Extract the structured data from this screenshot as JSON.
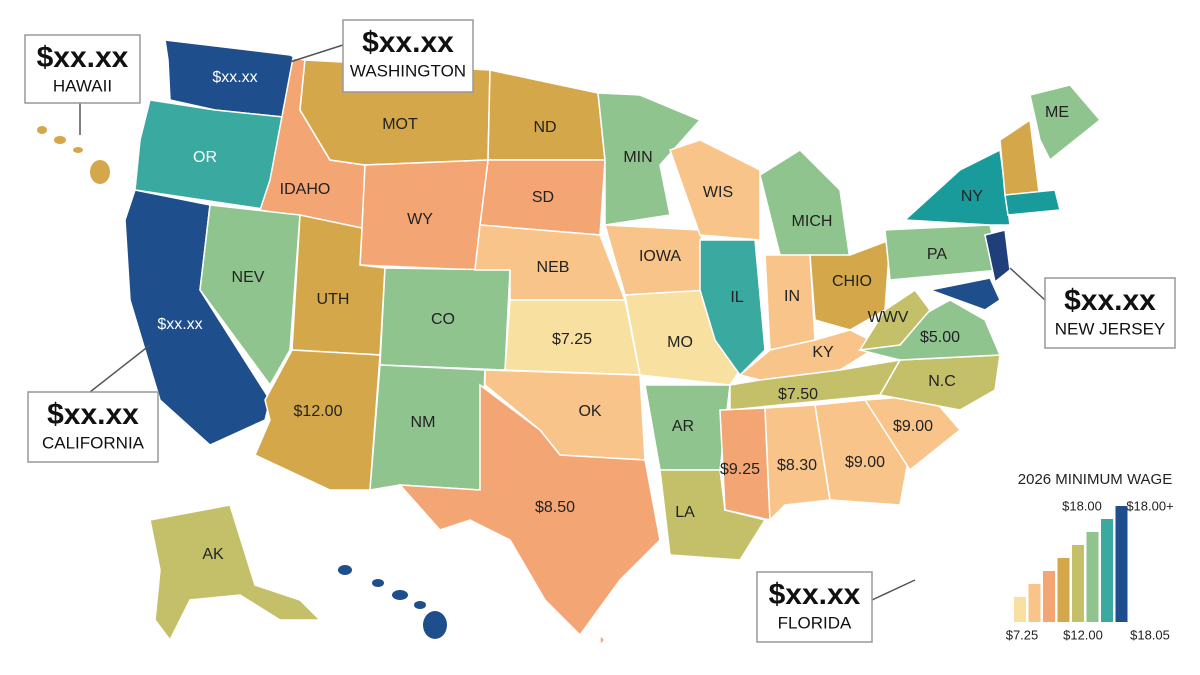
{
  "callouts": [
    {
      "value": "$xx.xx",
      "label": "HAWAII"
    },
    {
      "value": "$xx.xx",
      "label": "WASHINGTON"
    },
    {
      "value": "$xx.xx",
      "label": "NEW JERSEY"
    },
    {
      "value": "$xx.xx",
      "label": "CALIFORNIA"
    },
    {
      "value": "$xx.xx",
      "label": "FLORIDA"
    }
  ],
  "states": [
    {
      "label": "$xx.xx"
    },
    {
      "label": "OR"
    },
    {
      "label": "$xx.xx"
    },
    {
      "label": "IDAHO"
    },
    {
      "label": "MOT"
    },
    {
      "label": "ND"
    },
    {
      "label": "SD"
    },
    {
      "label": "WY"
    },
    {
      "label": "NEV"
    },
    {
      "label": "UTH"
    },
    {
      "label": "CO"
    },
    {
      "label": "$12.00"
    },
    {
      "label": "NM"
    },
    {
      "label": "NEB"
    },
    {
      "label": "$7.25"
    },
    {
      "label": "OK"
    },
    {
      "label": "$8.50"
    },
    {
      "label": "MIN"
    },
    {
      "label": "IOWA"
    },
    {
      "label": "MO"
    },
    {
      "label": "AR"
    },
    {
      "label": "LA"
    },
    {
      "label": "WIS"
    },
    {
      "label": "IL"
    },
    {
      "label": "MICH"
    },
    {
      "label": "IN"
    },
    {
      "label": "CHIO"
    },
    {
      "label": "KY"
    },
    {
      "label": "$7.50"
    },
    {
      "label": "$9.25"
    },
    {
      "label": "$8.30"
    },
    {
      "label": "$9.00"
    },
    {
      "label": "$9.00"
    },
    {
      "label": "N.C"
    },
    {
      "label": "$5.00"
    },
    {
      "label": "WWV"
    },
    {
      "label": "PA"
    },
    {
      "label": "NY"
    },
    {
      "label": "ME"
    },
    {
      "label": "AK"
    }
  ],
  "legend": {
    "title": "2026 MINIMUM WAGE",
    "top_labels": [
      "$18.00",
      "$18.00+"
    ],
    "bottom_labels": [
      "$7.25",
      "$12.00",
      "$18.05"
    ]
  }
}
